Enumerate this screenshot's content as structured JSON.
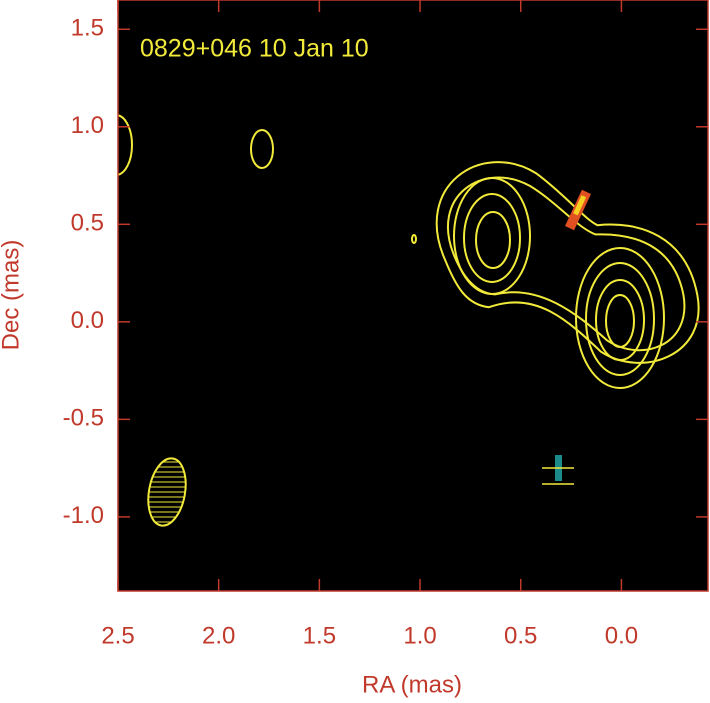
{
  "chart_data": {
    "type": "contour",
    "title": "0829+046   10 Jan 10",
    "x_label": "RA (mas)",
    "y_label": "Dec (mas)",
    "xlim": [
      2.5,
      -0.43
    ],
    "ylim": [
      -1.38,
      1.65
    ],
    "xticks": [
      2.5,
      {
        "value": 2,
        "label": "2.0"
      },
      1.5,
      {
        "value": 1,
        "label": "1.0"
      },
      0.5,
      {
        "value": 0,
        "label": "0.0"
      }
    ],
    "yticks": [
      1.5,
      {
        "value": 1,
        "label": "1.0"
      },
      0.5,
      {
        "value": 0,
        "label": "0.0"
      },
      -0.5,
      {
        "value": -1,
        "label": "-1.0"
      }
    ],
    "axis_color": "#c0392b",
    "background": "#000000",
    "contour_color": "#f2ea3a"
  }
}
